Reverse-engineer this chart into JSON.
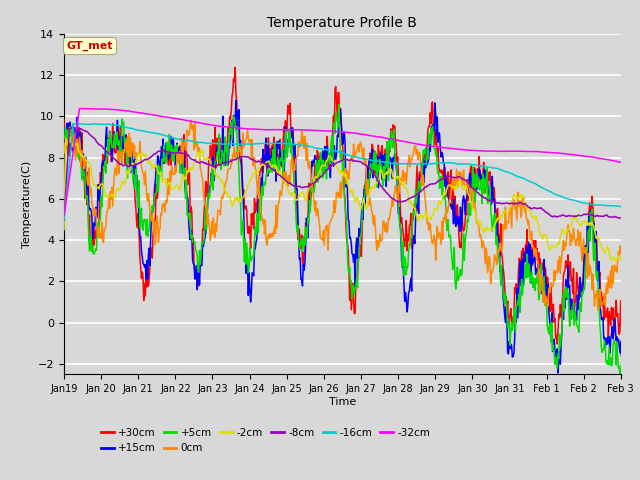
{
  "title": "Temperature Profile B",
  "xlabel": "Time",
  "ylabel": "Temperature(C)",
  "ylim": [
    -2.5,
    14
  ],
  "yticks": [
    -2,
    0,
    2,
    4,
    6,
    8,
    10,
    12,
    14
  ],
  "background_color": "#d8d8d8",
  "plot_bg_color": "#d8d8d8",
  "grid_color": "white",
  "series": [
    {
      "label": "+30cm",
      "color": "#ff0000"
    },
    {
      "label": "+15cm",
      "color": "#0000ff"
    },
    {
      "label": "+5cm",
      "color": "#00dd00"
    },
    {
      "label": "0cm",
      "color": "#ff8800"
    },
    {
      "label": "-2cm",
      "color": "#dddd00"
    },
    {
      "label": "-8cm",
      "color": "#9900bb"
    },
    {
      "label": "-16cm",
      "color": "#00cccc"
    },
    {
      "label": "-32cm",
      "color": "#ff00ff"
    }
  ],
  "annotation_text": "GT_met",
  "annotation_color": "#cc0000",
  "annotation_bg": "#ffffcc",
  "n_days": 16,
  "pts_per_day": 48,
  "tick_labels": [
    "Jan19",
    "Jan 20",
    "Jan 21",
    "Jan 22",
    "Jan 23",
    "Jan 24",
    "Jan 25",
    "Jan 26",
    "Jan 27",
    "Jan 28",
    "Jan 29",
    "Jan 30",
    "Jan 31",
    "Feb 1",
    "Feb 2",
    "Feb 3"
  ]
}
